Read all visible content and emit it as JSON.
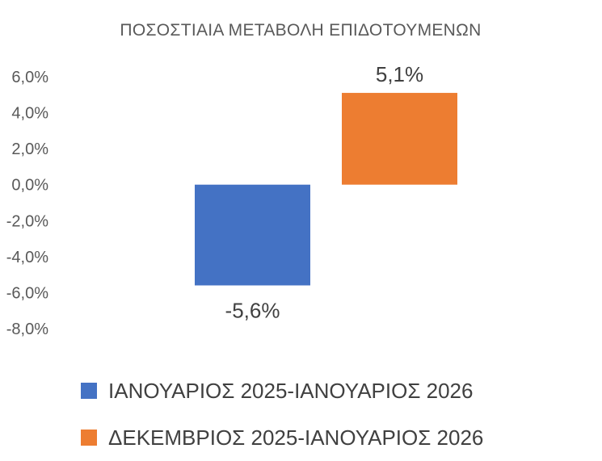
{
  "chart_data": {
    "type": "bar",
    "title": "ΠΟΣΟΣΤΙΑΙΑ ΜΕΤΑΒΟΛΗ ΕΠΙΔΟΤΟΥΜΕΝΩΝ",
    "xlabel": "",
    "ylabel": "",
    "ylim": [
      -8,
      6
    ],
    "y_ticks": [
      "6,0%",
      "4,0%",
      "2,0%",
      "0,0%",
      "-2,0%",
      "-4,0%",
      "-6,0%",
      "-8,0%"
    ],
    "y_tick_values": [
      6,
      4,
      2,
      0,
      -2,
      -4,
      -6,
      -8
    ],
    "grid": false,
    "legend_position": "bottom",
    "series": [
      {
        "name": "ΙΑΝΟΥΑΡΙΟΣ 2025-ΙΑΝΟΥΑΡΙΟΣ 2026",
        "value": -5.6,
        "label": "-5,6%",
        "color": "#4472C4"
      },
      {
        "name": "ΔΕΚΕΜΒΡΙΟΣ 2025-ΙΑΝΟΥΑΡΙΟΣ 2026",
        "value": 5.1,
        "label": "5,1%",
        "color": "#ED7D31"
      }
    ]
  }
}
